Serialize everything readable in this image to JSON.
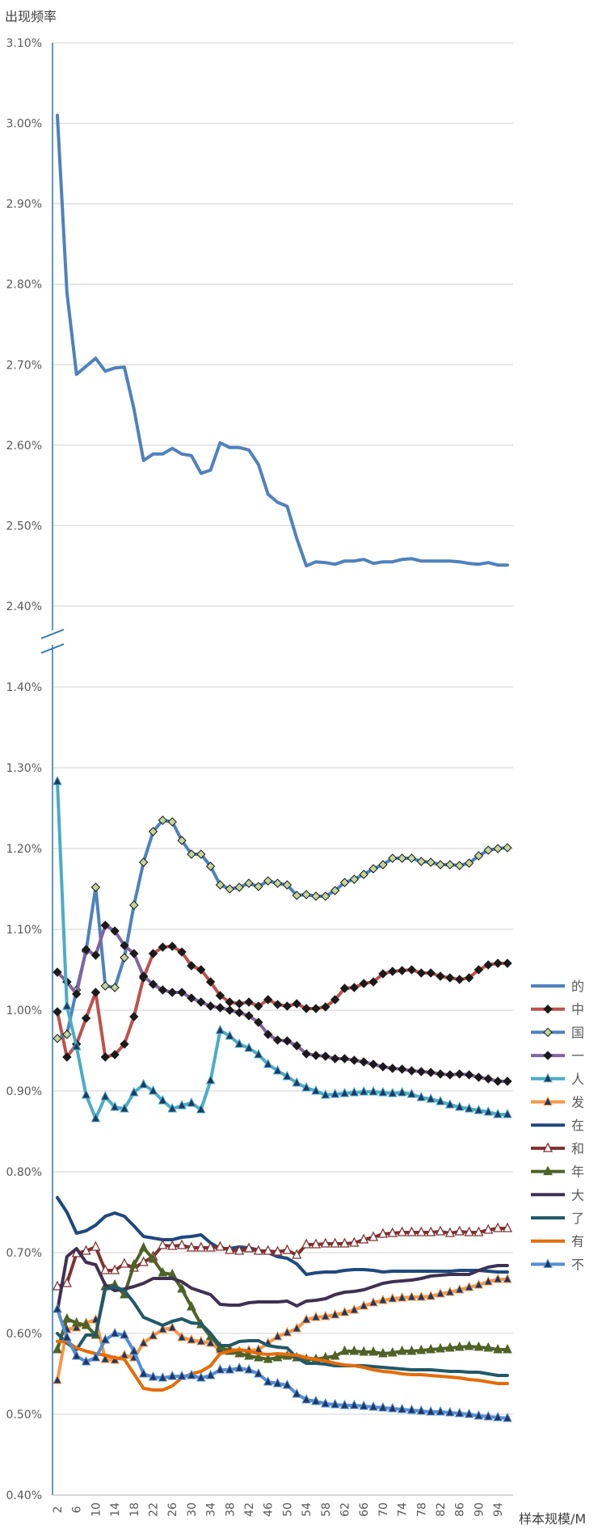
{
  "chart_data": {
    "type": "line",
    "ylabel": "出现频率",
    "xlabel": "样本规模/M",
    "grid": true,
    "legend_position": "right",
    "axis_break": {
      "below": 1.4,
      "above": 2.4
    },
    "y_ticks_lower": [
      "0.40%",
      "0.50%",
      "0.60%",
      "0.70%",
      "0.80%",
      "0.90%",
      "1.00%",
      "1.10%",
      "1.20%",
      "1.30%",
      "1.40%"
    ],
    "y_ticks_upper": [
      "2.40%",
      "2.50%",
      "2.60%",
      "2.70%",
      "2.80%",
      "2.90%",
      "3.00%",
      "3.10%"
    ],
    "x": [
      2,
      4,
      6,
      8,
      10,
      12,
      14,
      16,
      18,
      20,
      22,
      24,
      26,
      28,
      30,
      32,
      34,
      36,
      38,
      40,
      42,
      44,
      46,
      48,
      50,
      52,
      54,
      56,
      58,
      60,
      62,
      64,
      66,
      68,
      70,
      72,
      74,
      76,
      78,
      80,
      82,
      84,
      86,
      88,
      90,
      92,
      94,
      96
    ],
    "x_tick_labels": [
      "2",
      "6",
      "10",
      "14",
      "18",
      "22",
      "26",
      "30",
      "34",
      "38",
      "42",
      "46",
      "50",
      "54",
      "58",
      "62",
      "66",
      "70",
      "74",
      "78",
      "82",
      "86",
      "90",
      "94"
    ],
    "series": [
      {
        "name": "的",
        "color": "#4F81BD",
        "marker": "none",
        "values": [
          3.01,
          2.79,
          2.688,
          2.698,
          2.708,
          2.692,
          2.696,
          2.697,
          2.645,
          2.581,
          2.589,
          2.589,
          2.596,
          2.589,
          2.587,
          2.565,
          2.569,
          2.603,
          2.597,
          2.597,
          2.594,
          2.576,
          2.539,
          2.529,
          2.524,
          2.484,
          2.45,
          2.455,
          2.454,
          2.452,
          2.456,
          2.456,
          2.458,
          2.453,
          2.455,
          2.455,
          2.458,
          2.459,
          2.456,
          2.456,
          2.456,
          2.456,
          2.455,
          2.453,
          2.452,
          2.454,
          2.451,
          2.451
        ]
      },
      {
        "name": "中",
        "color": "#C0504D",
        "marker": "diamond",
        "values": [
          0.998,
          0.942,
          0.958,
          0.99,
          1.022,
          0.942,
          0.945,
          0.958,
          0.992,
          1.04,
          1.07,
          1.078,
          1.079,
          1.072,
          1.055,
          1.05,
          1.035,
          1.018,
          1.01,
          1.008,
          1.01,
          1.005,
          1.013,
          1.007,
          1.005,
          1.008,
          1.002,
          1.002,
          1.004,
          1.013,
          1.027,
          1.028,
          1.033,
          1.035,
          1.045,
          1.048,
          1.049,
          1.05,
          1.046,
          1.046,
          1.042,
          1.04,
          1.038,
          1.04,
          1.05,
          1.056,
          1.058,
          1.058
        ]
      },
      {
        "name": "国",
        "color": "#4F81BD",
        "marker": "diamond-green",
        "values": [
          0.965,
          0.97,
          1.025,
          1.073,
          1.152,
          1.03,
          1.028,
          1.065,
          1.13,
          1.183,
          1.221,
          1.235,
          1.233,
          1.21,
          1.193,
          1.193,
          1.178,
          1.155,
          1.15,
          1.152,
          1.157,
          1.153,
          1.16,
          1.157,
          1.155,
          1.142,
          1.143,
          1.141,
          1.141,
          1.148,
          1.158,
          1.162,
          1.168,
          1.175,
          1.18,
          1.188,
          1.188,
          1.188,
          1.184,
          1.183,
          1.18,
          1.18,
          1.179,
          1.182,
          1.191,
          1.198,
          1.2,
          1.201
        ]
      },
      {
        "name": "一",
        "color": "#8064A2",
        "marker": "diamond",
        "values": [
          1.047,
          1.035,
          1.02,
          1.075,
          1.068,
          1.105,
          1.098,
          1.08,
          1.07,
          1.042,
          1.032,
          1.025,
          1.022,
          1.022,
          1.015,
          1.01,
          1.005,
          1.003,
          1.0,
          0.997,
          0.993,
          0.985,
          0.97,
          0.963,
          0.962,
          0.956,
          0.946,
          0.944,
          0.943,
          0.94,
          0.94,
          0.938,
          0.936,
          0.933,
          0.93,
          0.928,
          0.927,
          0.925,
          0.924,
          0.923,
          0.921,
          0.92,
          0.921,
          0.92,
          0.917,
          0.915,
          0.912,
          0.912
        ]
      },
      {
        "name": "人",
        "color": "#4BACC6",
        "marker": "triangle",
        "values": [
          1.283,
          1.005,
          0.955,
          0.895,
          0.866,
          0.893,
          0.88,
          0.878,
          0.898,
          0.908,
          0.9,
          0.888,
          0.878,
          0.882,
          0.885,
          0.877,
          0.913,
          0.975,
          0.968,
          0.958,
          0.953,
          0.945,
          0.933,
          0.925,
          0.918,
          0.91,
          0.904,
          0.9,
          0.895,
          0.896,
          0.897,
          0.898,
          0.899,
          0.899,
          0.898,
          0.897,
          0.898,
          0.896,
          0.892,
          0.89,
          0.887,
          0.883,
          0.88,
          0.878,
          0.876,
          0.874,
          0.871,
          0.871
        ]
      },
      {
        "name": "发",
        "color": "#F79646",
        "marker": "triangle",
        "values": [
          0.542,
          0.605,
          0.607,
          0.613,
          0.617,
          0.568,
          0.567,
          0.573,
          0.57,
          0.588,
          0.597,
          0.605,
          0.607,
          0.595,
          0.592,
          0.59,
          0.588,
          0.58,
          0.581,
          0.578,
          0.579,
          0.58,
          0.588,
          0.596,
          0.601,
          0.606,
          0.617,
          0.62,
          0.621,
          0.623,
          0.626,
          0.629,
          0.634,
          0.638,
          0.641,
          0.643,
          0.644,
          0.645,
          0.645,
          0.646,
          0.649,
          0.651,
          0.654,
          0.657,
          0.66,
          0.664,
          0.667,
          0.667
        ]
      },
      {
        "name": "在",
        "color": "#1F497D",
        "marker": "none",
        "values": [
          0.768,
          0.75,
          0.724,
          0.727,
          0.734,
          0.745,
          0.749,
          0.745,
          0.733,
          0.72,
          0.718,
          0.716,
          0.716,
          0.719,
          0.72,
          0.722,
          0.712,
          0.705,
          0.705,
          0.707,
          0.706,
          0.703,
          0.7,
          0.695,
          0.693,
          0.686,
          0.673,
          0.675,
          0.676,
          0.676,
          0.678,
          0.679,
          0.679,
          0.678,
          0.676,
          0.677,
          0.677,
          0.677,
          0.677,
          0.677,
          0.677,
          0.677,
          0.678,
          0.678,
          0.678,
          0.677,
          0.676,
          0.676
        ]
      },
      {
        "name": "和",
        "color": "#7F3130",
        "marker": "triangle-open",
        "values": [
          0.658,
          0.662,
          0.699,
          0.702,
          0.707,
          0.678,
          0.678,
          0.686,
          0.681,
          0.688,
          0.695,
          0.709,
          0.708,
          0.709,
          0.706,
          0.706,
          0.706,
          0.707,
          0.703,
          0.702,
          0.705,
          0.702,
          0.702,
          0.701,
          0.703,
          0.697,
          0.71,
          0.71,
          0.711,
          0.711,
          0.711,
          0.712,
          0.716,
          0.719,
          0.723,
          0.724,
          0.725,
          0.725,
          0.725,
          0.725,
          0.726,
          0.724,
          0.726,
          0.725,
          0.725,
          0.728,
          0.73,
          0.73
        ]
      },
      {
        "name": "年",
        "color": "#4F6228",
        "marker": "triangle",
        "values": [
          0.58,
          0.618,
          0.613,
          0.61,
          0.598,
          0.658,
          0.66,
          0.648,
          0.685,
          0.706,
          0.692,
          0.675,
          0.673,
          0.655,
          0.633,
          0.611,
          0.596,
          0.583,
          0.578,
          0.575,
          0.572,
          0.57,
          0.568,
          0.57,
          0.572,
          0.57,
          0.568,
          0.568,
          0.57,
          0.572,
          0.578,
          0.578,
          0.577,
          0.577,
          0.575,
          0.576,
          0.578,
          0.578,
          0.579,
          0.58,
          0.581,
          0.582,
          0.583,
          0.584,
          0.583,
          0.582,
          0.58,
          0.58
        ]
      },
      {
        "name": "大",
        "color": "#3F3151",
        "marker": "none",
        "values": [
          0.628,
          0.695,
          0.705,
          0.688,
          0.685,
          0.66,
          0.653,
          0.655,
          0.658,
          0.662,
          0.668,
          0.668,
          0.668,
          0.664,
          0.656,
          0.652,
          0.648,
          0.636,
          0.635,
          0.635,
          0.638,
          0.639,
          0.639,
          0.639,
          0.64,
          0.634,
          0.64,
          0.641,
          0.643,
          0.648,
          0.651,
          0.652,
          0.654,
          0.658,
          0.662,
          0.664,
          0.665,
          0.666,
          0.668,
          0.671,
          0.672,
          0.673,
          0.673,
          0.673,
          0.678,
          0.682,
          0.684,
          0.684
        ]
      },
      {
        "name": "了",
        "color": "#215968",
        "marker": "none",
        "values": [
          0.6,
          0.588,
          0.58,
          0.598,
          0.598,
          0.655,
          0.658,
          0.653,
          0.638,
          0.62,
          0.615,
          0.61,
          0.615,
          0.618,
          0.613,
          0.612,
          0.6,
          0.585,
          0.585,
          0.59,
          0.591,
          0.591,
          0.585,
          0.583,
          0.582,
          0.57,
          0.563,
          0.563,
          0.562,
          0.56,
          0.56,
          0.56,
          0.56,
          0.559,
          0.558,
          0.557,
          0.556,
          0.555,
          0.555,
          0.555,
          0.554,
          0.553,
          0.553,
          0.552,
          0.552,
          0.55,
          0.548,
          0.548
        ]
      },
      {
        "name": "有",
        "color": "#E46C0A",
        "marker": "none",
        "values": [
          0.59,
          0.59,
          0.582,
          0.578,
          0.575,
          0.573,
          0.57,
          0.568,
          0.55,
          0.532,
          0.53,
          0.53,
          0.535,
          0.545,
          0.55,
          0.553,
          0.56,
          0.575,
          0.578,
          0.58,
          0.578,
          0.575,
          0.574,
          0.575,
          0.574,
          0.573,
          0.57,
          0.568,
          0.566,
          0.563,
          0.561,
          0.56,
          0.558,
          0.555,
          0.553,
          0.552,
          0.55,
          0.549,
          0.549,
          0.548,
          0.547,
          0.546,
          0.545,
          0.543,
          0.542,
          0.54,
          0.538,
          0.538
        ]
      },
      {
        "name": "不",
        "color": "#558ED5",
        "marker": "triangle",
        "values": [
          0.63,
          0.595,
          0.572,
          0.565,
          0.57,
          0.592,
          0.6,
          0.598,
          0.578,
          0.55,
          0.546,
          0.545,
          0.547,
          0.547,
          0.548,
          0.545,
          0.548,
          0.555,
          0.555,
          0.557,
          0.555,
          0.55,
          0.54,
          0.538,
          0.536,
          0.525,
          0.518,
          0.516,
          0.513,
          0.512,
          0.511,
          0.511,
          0.51,
          0.509,
          0.508,
          0.507,
          0.506,
          0.505,
          0.504,
          0.503,
          0.503,
          0.502,
          0.501,
          0.5,
          0.498,
          0.497,
          0.496,
          0.495
        ]
      }
    ]
  }
}
